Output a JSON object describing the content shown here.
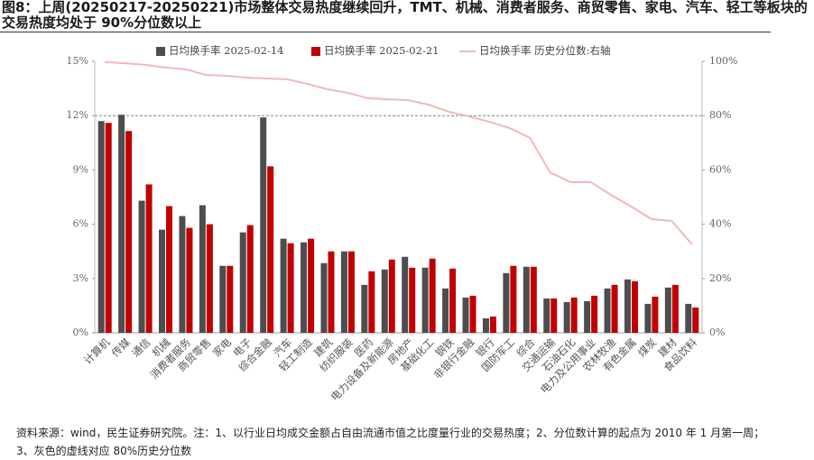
{
  "chart_data": {
    "type": "bar",
    "title": "图8：上周(20250217-20250221)市场整体交易热度继续回升，TMT、机械、消费者服务、商贸零售、家电、汽车、轻工等板块的交易热度均处于 90%分位数以上",
    "footnote": "资料来源：wind，民生证券研究院。注：1、以行业日均成交金额占自由流通市值之比度量行业的交易热度；2、分位数计算的起点为 2010 年 1 月第一周；3、灰色的虚线对应 80%历史分位数",
    "categories": [
      "计算机",
      "传媒",
      "通信",
      "机械",
      "消费者服务",
      "商贸零售",
      "家电",
      "电子",
      "综合金融",
      "汽车",
      "轻工制造",
      "建筑",
      "纺织服装",
      "医药",
      "电力设备及新能源",
      "房地产",
      "基础化工",
      "钢铁",
      "非银行金融",
      "银行",
      "国防军工",
      "综合",
      "交通运输",
      "石油石化",
      "电力及公用事业",
      "农林牧渔",
      "有色金属",
      "煤炭",
      "建材",
      "食品饮料"
    ],
    "series": [
      {
        "name": "日均换手率 2025-02-14",
        "type": "bar",
        "color": "#4d4d4d",
        "values": [
          11.7,
          12.05,
          7.3,
          5.7,
          6.45,
          7.05,
          3.7,
          5.55,
          11.9,
          5.2,
          5.0,
          3.85,
          4.5,
          2.65,
          3.5,
          4.2,
          3.6,
          2.45,
          1.95,
          0.8,
          3.3,
          3.65,
          1.9,
          1.7,
          1.75,
          2.45,
          2.95,
          1.6,
          2.5,
          1.6
        ]
      },
      {
        "name": "日均换手率 2025-02-21",
        "type": "bar",
        "color": "#c00000",
        "values": [
          11.6,
          11.15,
          8.2,
          7.0,
          5.8,
          6.0,
          3.7,
          5.95,
          9.2,
          4.95,
          5.2,
          4.5,
          4.5,
          3.4,
          4.05,
          3.6,
          4.1,
          3.55,
          2.05,
          0.9,
          3.7,
          3.65,
          1.9,
          1.95,
          2.05,
          2.65,
          2.85,
          2.0,
          2.65,
          1.4
        ]
      },
      {
        "name": "日均换手率 历史分位数:右轴",
        "type": "line",
        "axis": "y2",
        "color": "#f2b8b8",
        "values": [
          99.7,
          99.3,
          98.7,
          97.7,
          97,
          95,
          94.7,
          94,
          93.7,
          93.4,
          91.7,
          89.7,
          88.4,
          86.4,
          86,
          85.7,
          84,
          81.4,
          79.7,
          77.7,
          75.4,
          71.8,
          59,
          55.5,
          55.5,
          50.8,
          46.5,
          41.9,
          41.2,
          32.6
        ]
      }
    ],
    "ylim": [
      0,
      15
    ],
    "yticks": [
      {
        "value": 0,
        "label": "0%"
      },
      {
        "value": 3,
        "label": "3%"
      },
      {
        "value": 6,
        "label": "6%"
      },
      {
        "value": 9,
        "label": "9%"
      },
      {
        "value": 12,
        "label": "12%"
      },
      {
        "value": 15,
        "label": "15%"
      }
    ],
    "y2lim": [
      0,
      100
    ],
    "y2ticks": [
      {
        "value": 0,
        "label": "0%"
      },
      {
        "value": 20,
        "label": "20%"
      },
      {
        "value": 40,
        "label": "40%"
      },
      {
        "value": 60,
        "label": "60%"
      },
      {
        "value": 80,
        "label": "80%"
      },
      {
        "value": 100,
        "label": "100%"
      }
    ],
    "reference_line": {
      "axis": "y2",
      "value": 80,
      "color": "#808080"
    },
    "legend": "top"
  }
}
